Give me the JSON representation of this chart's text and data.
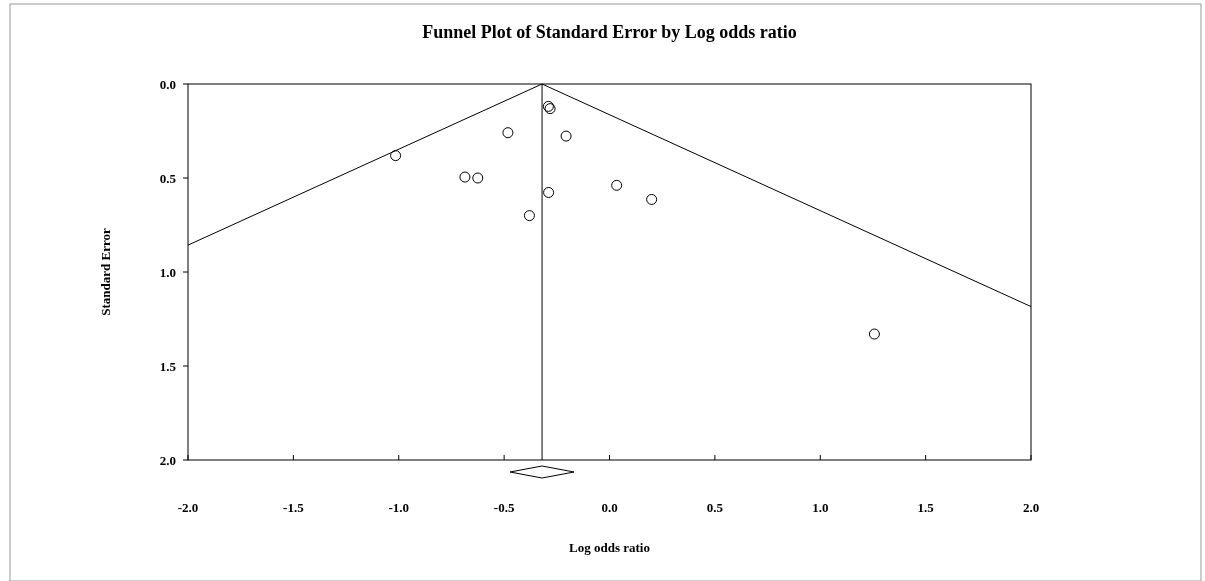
{
  "chart_data": {
    "type": "scatter",
    "title": "Funnel Plot of Standard Error by Log odds ratio",
    "xlabel": "Log odds ratio",
    "ylabel": "Standard Error",
    "xlim": [
      -2.0,
      2.0
    ],
    "xticks": [
      {
        "value": -2,
        "label": "-2.0"
      },
      {
        "value": -1.5,
        "label": "-1.5"
      },
      {
        "value": -1,
        "label": "-1.0"
      },
      {
        "value": -0.5,
        "label": "-0.5"
      },
      {
        "value": 0,
        "label": "0.0"
      },
      {
        "value": 0.5,
        "label": "0.5"
      },
      {
        "value": 1,
        "label": "1.0"
      },
      {
        "value": 1.5,
        "label": "1.5"
      },
      {
        "value": 2,
        "label": "2.0"
      }
    ],
    "ylim": [
      2.0,
      0.0
    ],
    "yticks": [
      {
        "value": 0,
        "label": "0.0"
      },
      {
        "value": 0.5,
        "label": "0.5"
      },
      {
        "value": 1,
        "label": "1.0"
      },
      {
        "value": 1.5,
        "label": "1.5"
      },
      {
        "value": 2,
        "label": "2.0"
      }
    ],
    "grid": false,
    "ref_lines": [
      {
        "axis": "x",
        "value": -0.32,
        "color": "#000000"
      }
    ],
    "series": [
      {
        "color": "#000000",
        "marker": "circle",
        "x": [
          -1.015,
          -0.686,
          -0.625,
          -0.482,
          -0.38,
          -0.29,
          -0.282,
          -0.206,
          -0.289,
          0.034,
          0.2,
          1.257
        ],
        "values": [
          0.381,
          0.495,
          0.5,
          0.259,
          0.7,
          0.119,
          0.131,
          0.277,
          0.577,
          0.539,
          0.614,
          1.33
        ]
      },
      {
        "type": "line",
        "color": "#000000",
        "marker": "none",
        "x": [
          -0.32,
          -2.0
        ],
        "values": [
          0,
          0.857
        ]
      },
      {
        "type": "line",
        "color": "#000000",
        "marker": "none",
        "x": [
          -0.32,
          2.0
        ],
        "values": [
          0,
          1.184
        ]
      }
    ]
  }
}
